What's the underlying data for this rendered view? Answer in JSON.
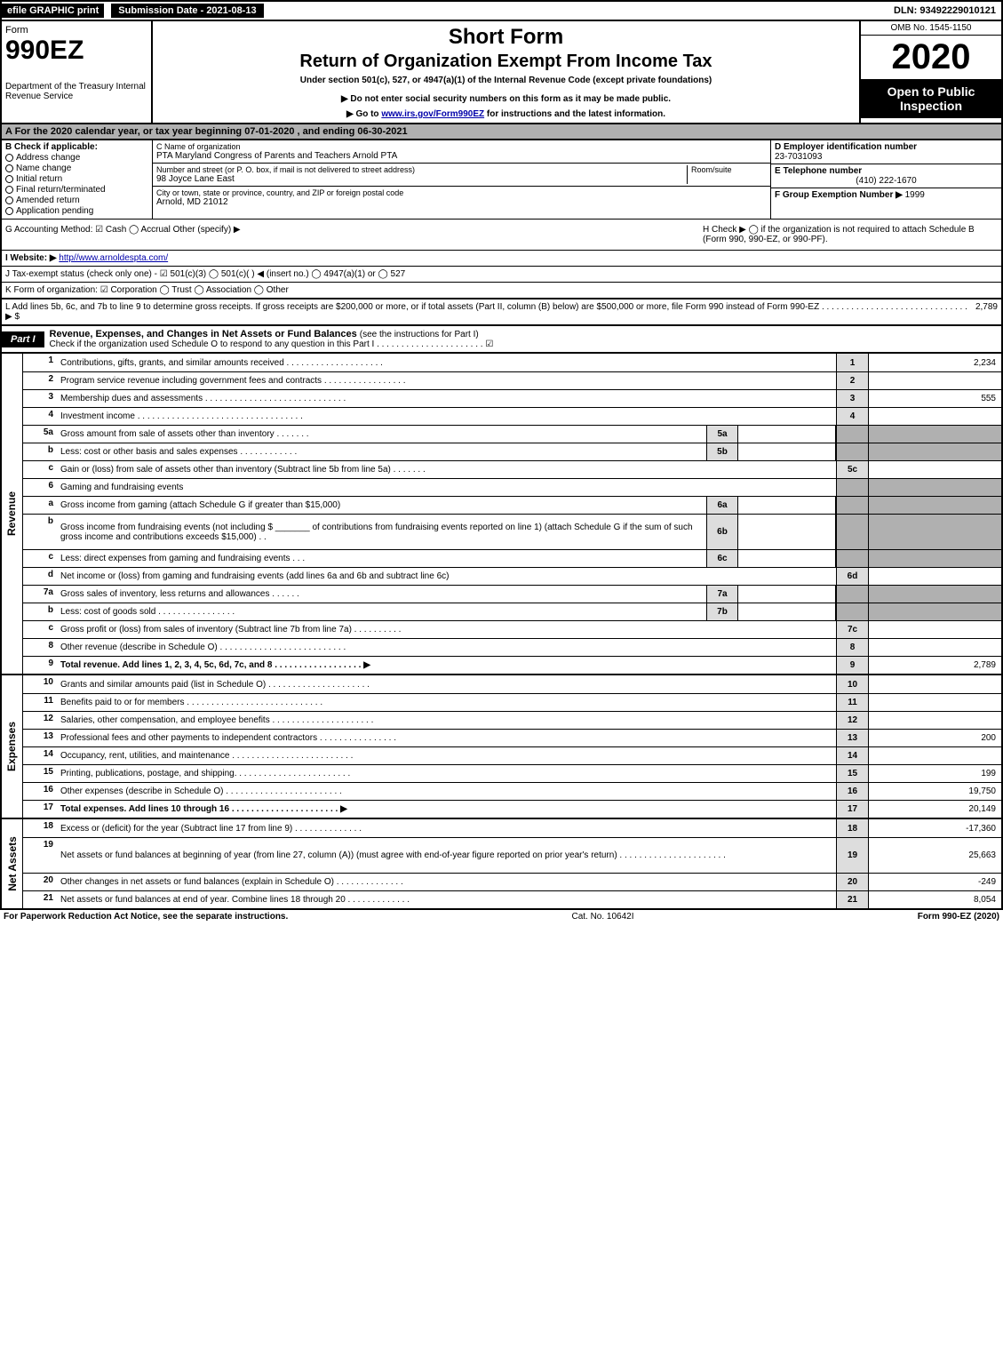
{
  "topbar": {
    "efile": "efile GRAPHIC print",
    "submission_label": "Submission Date - 2021-08-13",
    "dln": "DLN: 93492229010121"
  },
  "header": {
    "form_word": "Form",
    "form_no": "990EZ",
    "dept": "Department of the Treasury Internal Revenue Service",
    "short_form": "Short Form",
    "title": "Return of Organization Exempt From Income Tax",
    "subtitle": "Under section 501(c), 527, or 4947(a)(1) of the Internal Revenue Code (except private foundations)",
    "note": "▶ Do not enter social security numbers on this form as it may be made public.",
    "link_prefix": "▶ Go to ",
    "link_text": "www.irs.gov/Form990EZ",
    "link_suffix": " for instructions and the latest information.",
    "omb": "OMB No. 1545-1150",
    "year": "2020",
    "open": "Open to Public Inspection"
  },
  "row_a": "A  For the 2020 calendar year, or tax year beginning 07-01-2020 , and ending 06-30-2021",
  "section_b": {
    "header": "B  Check if applicable:",
    "items": [
      "Address change",
      "Name change",
      "Initial return",
      "Final return/terminated",
      "Amended return",
      "Application pending"
    ]
  },
  "section_c": {
    "name_label": "C Name of organization",
    "name": "PTA Maryland Congress of Parents and Teachers Arnold PTA",
    "addr_label1": "Number and street (or P. O. box, if mail is not delivered to street address)",
    "addr_label2": "Room/suite",
    "addr": "98 Joyce Lane East",
    "city_label": "City or town, state or province, country, and ZIP or foreign postal code",
    "city": "Arnold, MD  21012"
  },
  "section_right": {
    "d_label": "D Employer identification number",
    "d_val": "23-7031093",
    "e_label": "E Telephone number",
    "e_val": "(410) 222-1670",
    "f_label": "F Group Exemption Number  ▶",
    "f_val": "1999"
  },
  "row_g": {
    "g": "G Accounting Method:  ☑ Cash  ◯ Accrual  Other (specify) ▶",
    "h": "H  Check ▶  ◯  if the organization is not required to attach Schedule B (Form 990, 990-EZ, or 990-PF)."
  },
  "row_i": {
    "label": "I Website: ▶",
    "url": "http//www.arnoldespta.com/"
  },
  "row_j": "J Tax-exempt status (check only one) - ☑ 501(c)(3) ◯ 501(c)( ) ◀ (insert no.) ◯ 4947(a)(1) or ◯ 527",
  "row_k": "K Form of organization:  ☑ Corporation  ◯ Trust  ◯ Association  ◯ Other",
  "row_l": {
    "text": "L Add lines 5b, 6c, and 7b to line 9 to determine gross receipts. If gross receipts are $200,000 or more, or if total assets (Part II, column (B) below) are $500,000 or more, file Form 990 instead of Form 990-EZ . . . . . . . . . . . . . . . . . . . . . . . . . . . . . . ▶ $",
    "amount": "2,789"
  },
  "part1": {
    "label": "Part I",
    "title": "Revenue, Expenses, and Changes in Net Assets or Fund Balances",
    "note": "(see the instructions for Part I)",
    "check_line": "Check if the organization used Schedule O to respond to any question in this Part I . . . . . . . . . . . . . . . . . . . . . . ☑"
  },
  "sections": [
    {
      "side": "Revenue",
      "lines": [
        {
          "no": "1",
          "desc": "Contributions, gifts, grants, and similar amounts received . . . . . . . . . . . . . . . . . . . .",
          "box": "1",
          "amt": "2,234"
        },
        {
          "no": "2",
          "desc": "Program service revenue including government fees and contracts . . . . . . . . . . . . . . . . .",
          "box": "2",
          "amt": ""
        },
        {
          "no": "3",
          "desc": "Membership dues and assessments . . . . . . . . . . . . . . . . . . . . . . . . . . . . .",
          "box": "3",
          "amt": "555"
        },
        {
          "no": "4",
          "desc": "Investment income . . . . . . . . . . . . . . . . . . . . . . . . . . . . . . . . . .",
          "box": "4",
          "amt": ""
        },
        {
          "no": "5a",
          "desc": "Gross amount from sale of assets other than inventory . . . . . . .",
          "inbox": "5a",
          "shade": true
        },
        {
          "no": "b",
          "desc": "Less: cost or other basis and sales expenses . . . . . . . . . . . .",
          "inbox": "5b",
          "shade": true
        },
        {
          "no": "c",
          "desc": "Gain or (loss) from sale of assets other than inventory (Subtract line 5b from line 5a) . . . . . . .",
          "box": "5c",
          "amt": ""
        },
        {
          "no": "6",
          "desc": "Gaming and fundraising events",
          "shade": true,
          "noright": true
        },
        {
          "no": "a",
          "desc": "Gross income from gaming (attach Schedule G if greater than $15,000)",
          "inbox": "6a",
          "shade": true
        },
        {
          "no": "b",
          "desc": "Gross income from fundraising events (not including $ _______ of contributions from fundraising events reported on line 1) (attach Schedule G if the sum of such gross income and contributions exceeds $15,000)   . .",
          "inbox": "6b",
          "shade": true,
          "tall": true
        },
        {
          "no": "c",
          "desc": "Less: direct expenses from gaming and fundraising events    . . .",
          "inbox": "6c",
          "shade": true
        },
        {
          "no": "d",
          "desc": "Net income or (loss) from gaming and fundraising events (add lines 6a and 6b and subtract line 6c)",
          "box": "6d",
          "amt": ""
        },
        {
          "no": "7a",
          "desc": "Gross sales of inventory, less returns and allowances . . . . . .",
          "inbox": "7a",
          "shade": true
        },
        {
          "no": "b",
          "desc": "Less: cost of goods sold     . . . . . . . . . . . . . . . .",
          "inbox": "7b",
          "shade": true
        },
        {
          "no": "c",
          "desc": "Gross profit or (loss) from sales of inventory (Subtract line 7b from line 7a) . . . . . . . . . .",
          "box": "7c",
          "amt": ""
        },
        {
          "no": "8",
          "desc": "Other revenue (describe in Schedule O) . . . . . . . . . . . . . . . . . . . . . . . . . .",
          "box": "8",
          "amt": ""
        },
        {
          "no": "9",
          "desc": "Total revenue. Add lines 1, 2, 3, 4, 5c, 6d, 7c, and 8  . . . . . . . . . . . . . . . . . .   ▶",
          "box": "9",
          "amt": "2,789",
          "bold": true
        }
      ]
    },
    {
      "side": "Expenses",
      "lines": [
        {
          "no": "10",
          "desc": "Grants and similar amounts paid (list in Schedule O) . . . . . . . . . . . . . . . . . . . . .",
          "box": "10",
          "amt": ""
        },
        {
          "no": "11",
          "desc": "Benefits paid to or for members   . . . . . . . . . . . . . . . . . . . . . . . . . . . .",
          "box": "11",
          "amt": ""
        },
        {
          "no": "12",
          "desc": "Salaries, other compensation, and employee benefits . . . . . . . . . . . . . . . . . . . . .",
          "box": "12",
          "amt": ""
        },
        {
          "no": "13",
          "desc": "Professional fees and other payments to independent contractors . . . . . . . . . . . . . . . .",
          "box": "13",
          "amt": "200"
        },
        {
          "no": "14",
          "desc": "Occupancy, rent, utilities, and maintenance . . . . . . . . . . . . . . . . . . . . . . . . .",
          "box": "14",
          "amt": ""
        },
        {
          "no": "15",
          "desc": "Printing, publications, postage, and shipping. . . . . . . . . . . . . . . . . . . . . . . .",
          "box": "15",
          "amt": "199"
        },
        {
          "no": "16",
          "desc": "Other expenses (describe in Schedule O)   . . . . . . . . . . . . . . . . . . . . . . . .",
          "box": "16",
          "amt": "19,750"
        },
        {
          "no": "17",
          "desc": "Total expenses. Add lines 10 through 16   . . . . . . . . . . . . . . . . . . . . . .   ▶",
          "box": "17",
          "amt": "20,149",
          "bold": true
        }
      ]
    },
    {
      "side": "Net Assets",
      "lines": [
        {
          "no": "18",
          "desc": "Excess or (deficit) for the year (Subtract line 17 from line 9)     . . . . . . . . . . . . . .",
          "box": "18",
          "amt": "-17,360"
        },
        {
          "no": "19",
          "desc": "Net assets or fund balances at beginning of year (from line 27, column (A)) (must agree with end-of-year figure reported on prior year's return) . . . . . . . . . . . . . . . . . . . . . .",
          "box": "19",
          "amt": "25,663",
          "tall": true
        },
        {
          "no": "20",
          "desc": "Other changes in net assets or fund balances (explain in Schedule O) . . . . . . . . . . . . . .",
          "box": "20",
          "amt": "-249"
        },
        {
          "no": "21",
          "desc": "Net assets or fund balances at end of year. Combine lines 18 through 20 . . . . . . . . . . . . .",
          "box": "21",
          "amt": "8,054"
        }
      ]
    }
  ],
  "footer": {
    "left": "For Paperwork Reduction Act Notice, see the separate instructions.",
    "mid": "Cat. No. 10642I",
    "right": "Form 990-EZ (2020)"
  },
  "colors": {
    "header_shade": "#b0b0b0",
    "box_shade": "#dddddd",
    "black": "#000000",
    "link": "#0000aa"
  }
}
